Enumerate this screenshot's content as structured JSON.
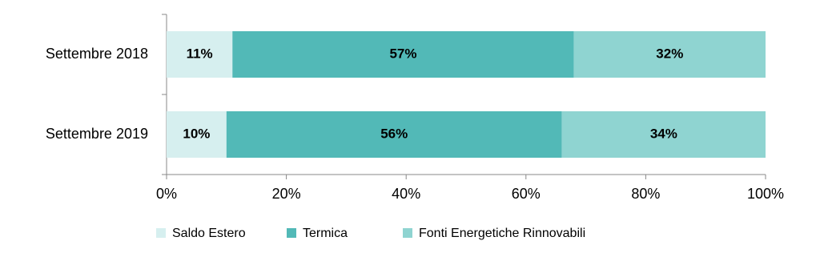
{
  "chart_data": {
    "type": "stacked-bar-horizontal",
    "categories": [
      "Settembre 2018",
      "Settembre 2019"
    ],
    "series": [
      {
        "name": "Saldo Estero",
        "color": "#d6efef",
        "values": [
          11,
          10
        ],
        "value_labels": [
          "11%",
          "10%"
        ]
      },
      {
        "name": "Termica",
        "color": "#52b9b7",
        "values": [
          57,
          56
        ],
        "value_labels": [
          "57%",
          "56%"
        ]
      },
      {
        "name": "Fonti Energetiche Rinnovabili",
        "color": "#8fd4d1",
        "values": [
          32,
          34
        ],
        "value_labels": [
          "32%",
          "34%"
        ]
      }
    ],
    "xlim": [
      0,
      100
    ],
    "xticks": [
      {
        "value": 0,
        "label": "0%"
      },
      {
        "value": 20,
        "label": "20%"
      },
      {
        "value": 40,
        "label": "40%"
      },
      {
        "value": 60,
        "label": "60%"
      },
      {
        "value": 80,
        "label": "80%"
      },
      {
        "value": 100,
        "label": "100%"
      }
    ],
    "legend": "bottom"
  }
}
